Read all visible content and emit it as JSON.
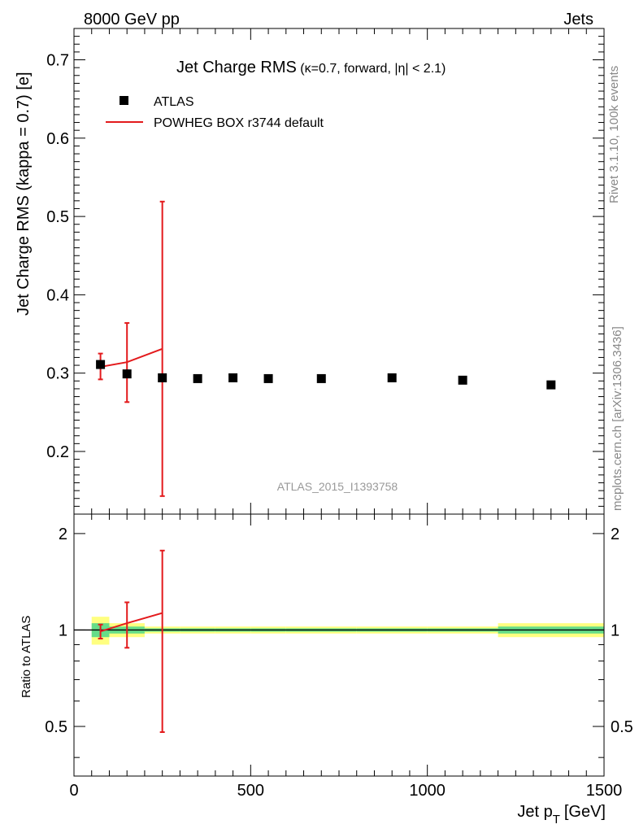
{
  "header": {
    "left": "8000 GeV pp",
    "right": "Jets"
  },
  "side_labels": {
    "rivet": "Rivet 3.1.10,  100k events",
    "source": "mcplots.cern.ch [arXiv:1306.3436]"
  },
  "colors": {
    "data": "#000000",
    "mc": "#e31a1c",
    "band_outer": "#ffff80",
    "band_inner": "#66dd88",
    "watermark": "#999999",
    "side_text": "#888888"
  },
  "chart_data": [
    {
      "type": "scatter",
      "panel": "main",
      "title": "Jet Charge RMS",
      "subtitle": "(κ=0.7, forward, |η| < 2.1)",
      "ylabel": "Jet Charge RMS (kappa = 0.7) [e]",
      "xlim": [
        0,
        1500
      ],
      "ylim": [
        0.12,
        0.74
      ],
      "yticks": [
        0.2,
        0.3,
        0.4,
        0.5,
        0.6,
        0.7
      ],
      "ytick_labels": [
        "0.2",
        "0.3",
        "0.4",
        "0.5",
        "0.6",
        "0.7"
      ],
      "watermark": "ATLAS_2015_I1393758",
      "legend": {
        "position": "top-left",
        "entries": [
          {
            "label": "ATLAS",
            "marker": "square"
          },
          {
            "label": "POWHEG BOX r3744 default",
            "marker": "line"
          }
        ]
      },
      "series": [
        {
          "name": "ATLAS",
          "x": [
            75,
            150,
            250,
            350,
            450,
            550,
            700,
            900,
            1100,
            1350
          ],
          "y": [
            0.311,
            0.299,
            0.294,
            0.293,
            0.294,
            0.293,
            0.293,
            0.294,
            0.291,
            0.285
          ]
        },
        {
          "name": "POWHEG BOX r3744 default",
          "x": [
            75,
            150,
            250
          ],
          "y": [
            0.308,
            0.314,
            0.331
          ],
          "yerr_low": [
            0.292,
            0.263,
            0.143
          ],
          "yerr_high": [
            0.325,
            0.364,
            0.519
          ]
        }
      ]
    },
    {
      "type": "line",
      "panel": "ratio",
      "ylabel": "Ratio to ATLAS",
      "xlabel": "Jet p_T [GeV]",
      "xlabel_main": "Jet p",
      "xlabel_sub": "T",
      "xlabel_unit": "[GeV]",
      "xlim": [
        0,
        1500
      ],
      "ylim": [
        0.35,
        2.3
      ],
      "xticks": [
        0,
        500,
        1000,
        1500
      ],
      "xtick_labels": [
        "0",
        "500",
        "1000",
        "1500"
      ],
      "yticks": [
        0.5,
        1,
        2
      ],
      "ytick_labels": [
        "0.5",
        "1",
        "2"
      ],
      "reference": 1.0,
      "band": {
        "edges": [
          50,
          100,
          200,
          300,
          400,
          500,
          600,
          800,
          1000,
          1200,
          1500
        ],
        "outer": [
          0.1,
          0.05,
          0.025,
          0.025,
          0.025,
          0.025,
          0.025,
          0.025,
          0.025,
          0.05
        ],
        "inner": [
          0.05,
          0.025,
          0.012,
          0.012,
          0.012,
          0.012,
          0.012,
          0.012,
          0.012,
          0.025
        ]
      },
      "series": [
        {
          "name": "POWHEG BOX r3744 default",
          "x": [
            75,
            150,
            250
          ],
          "y": [
            0.99,
            1.05,
            1.13
          ],
          "yerr_low": [
            0.94,
            0.88,
            0.48
          ],
          "yerr_high": [
            1.04,
            1.22,
            1.77
          ]
        }
      ]
    }
  ]
}
